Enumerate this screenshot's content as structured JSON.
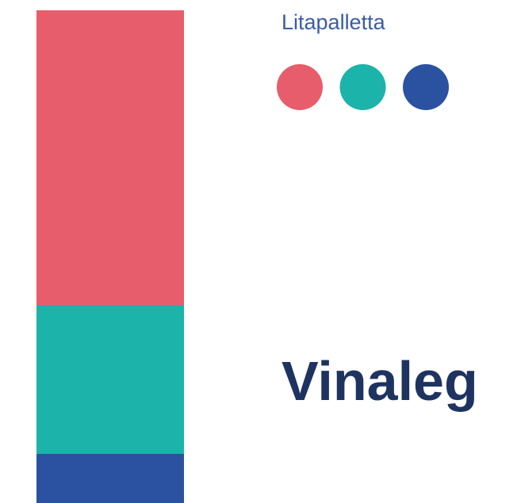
{
  "title": "Litapalletta",
  "brand": "Vinaleg",
  "palette": [
    "#e85d6b",
    "#1bb3aa",
    "#2a52a0"
  ]
}
